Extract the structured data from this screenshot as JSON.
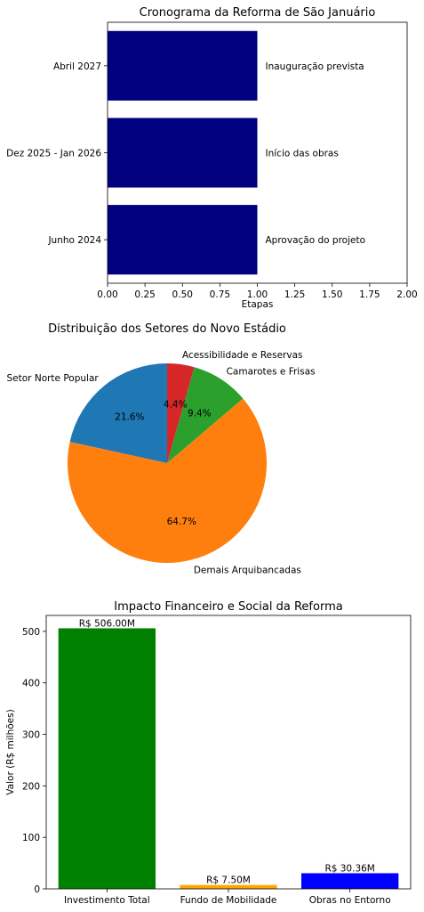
{
  "chart_data": [
    {
      "type": "bar",
      "orientation": "horizontal",
      "title": "Cronograma da Reforma de São Januário",
      "xlabel": "Etapas",
      "ylabel": "",
      "categories": [
        "Junho 2024",
        "Dez 2025 - Jan 2026",
        "Abril 2027"
      ],
      "values": [
        1,
        1,
        1
      ],
      "bar_labels": [
        "Aprovação do projeto",
        "Início das obras",
        "Inauguração prevista"
      ],
      "xlim": [
        0,
        2
      ],
      "xticks": [
        "0.00",
        "0.25",
        "0.50",
        "0.75",
        "1.00",
        "1.25",
        "1.50",
        "1.75",
        "2.00"
      ],
      "color": "#000080",
      "grid": false
    },
    {
      "type": "pie",
      "title": "Distribuição dos Setores do Novo Estádio",
      "slices": [
        {
          "label": "Setor Norte Popular",
          "value": 21.6,
          "pct_label": "21.6%",
          "color": "#1f77b4"
        },
        {
          "label": "Demais Arquibancadas",
          "value": 64.7,
          "pct_label": "64.7%",
          "color": "#ff7f0e"
        },
        {
          "label": "Camarotes e Frisas",
          "value": 9.4,
          "pct_label": "9.4%",
          "color": "#2ca02c"
        },
        {
          "label": "Acessibilidade e Reservas",
          "value": 4.4,
          "pct_label": "4.4%",
          "color": "#d62728"
        }
      ]
    },
    {
      "type": "bar",
      "title": "Impacto Financeiro e Social da Reforma",
      "xlabel": "",
      "ylabel": "Valor (R$ milhões)",
      "categories": [
        "Investimento Total",
        "Fundo de Mobilidade",
        "Obras no Entorno"
      ],
      "values": [
        506.0,
        7.5,
        30.36
      ],
      "bar_labels": [
        "R$ 506.00M",
        "R$ 7.50M",
        "R$ 30.36M"
      ],
      "colors": [
        "#008000",
        "#ffa500",
        "#0000ff"
      ],
      "ylim": [
        0,
        531
      ],
      "yticks": [
        0,
        100,
        200,
        300,
        400,
        500
      ],
      "grid": false
    }
  ]
}
